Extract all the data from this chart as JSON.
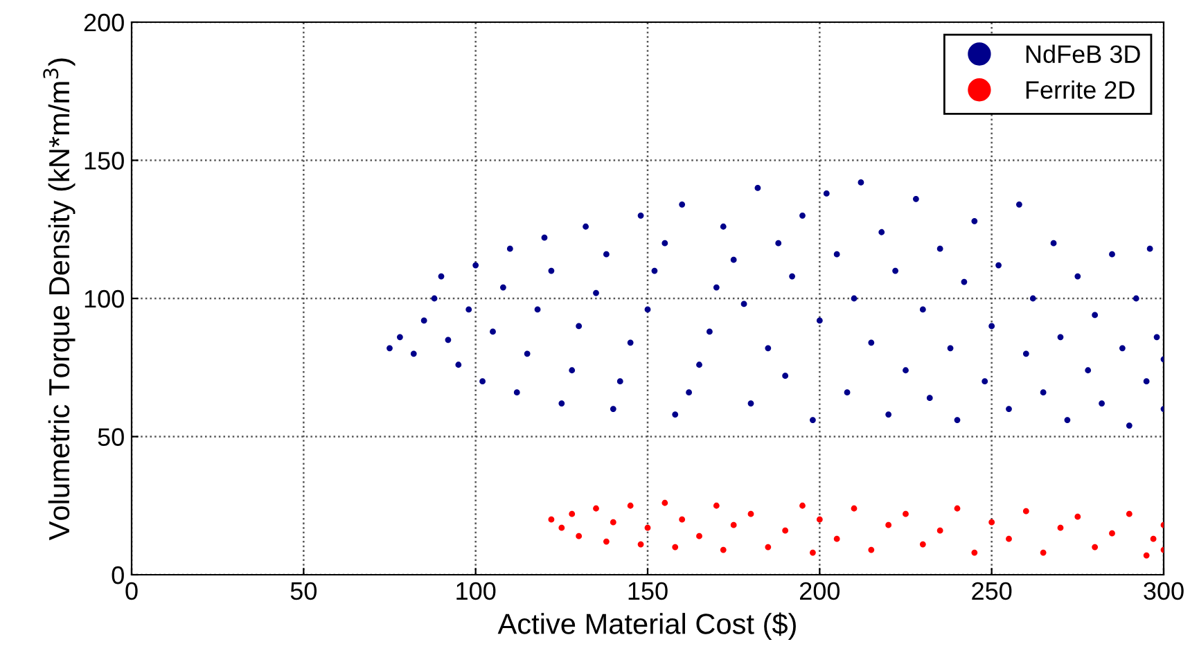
{
  "chart_data": {
    "type": "scatter",
    "xlabel": "Active Material Cost ($)",
    "ylabel": "Volumetric Torque Density (kN*m/m$^{3}$)",
    "xlim": [
      0,
      300
    ],
    "ylim": [
      0,
      200
    ],
    "xticks": [
      0,
      50,
      100,
      150,
      200,
      250,
      300
    ],
    "yticks": [
      0,
      50,
      100,
      150,
      200
    ],
    "grid": true,
    "legend": "top right",
    "marker": "circle",
    "series": [
      {
        "name": "NdFeB 3D",
        "color": "#00008b",
        "x": [
          75,
          78,
          82,
          85,
          88,
          90,
          92,
          95,
          98,
          100,
          102,
          105,
          108,
          110,
          112,
          115,
          118,
          120,
          122,
          125,
          128,
          130,
          132,
          135,
          138,
          140,
          142,
          145,
          148,
          150,
          152,
          155,
          158,
          160,
          162,
          165,
          168,
          170,
          172,
          175,
          178,
          180,
          182,
          185,
          188,
          190,
          192,
          195,
          198,
          200,
          202,
          205,
          208,
          210,
          212,
          215,
          218,
          220,
          222,
          225,
          228,
          230,
          232,
          235,
          238,
          240,
          242,
          245,
          248,
          250,
          252,
          255,
          258,
          260,
          262,
          265,
          268,
          270,
          272,
          275,
          278,
          280,
          282,
          285,
          288,
          290,
          292,
          295,
          296,
          298,
          300,
          300
        ],
        "values": [
          82,
          86,
          80,
          92,
          100,
          108,
          85,
          76,
          96,
          112,
          70,
          88,
          104,
          118,
          66,
          80,
          96,
          122,
          110,
          62,
          74,
          90,
          126,
          102,
          116,
          60,
          70,
          84,
          130,
          96,
          110,
          120,
          58,
          134,
          66,
          76,
          88,
          104,
          126,
          114,
          98,
          62,
          140,
          82,
          120,
          72,
          108,
          130,
          56,
          92,
          138,
          116,
          66,
          100,
          142,
          84,
          124,
          58,
          110,
          74,
          136,
          96,
          64,
          118,
          82,
          56,
          106,
          128,
          70,
          90,
          112,
          60,
          134,
          80,
          100,
          66,
          120,
          86,
          56,
          108,
          74,
          94,
          62,
          116,
          82,
          54,
          100,
          70,
          118,
          86,
          60,
          78
        ]
      },
      {
        "name": "Ferrite 2D",
        "color": "#ff0000",
        "x": [
          122,
          125,
          128,
          130,
          135,
          138,
          140,
          145,
          148,
          150,
          155,
          158,
          160,
          165,
          170,
          172,
          175,
          180,
          185,
          190,
          195,
          198,
          200,
          205,
          210,
          215,
          220,
          225,
          230,
          235,
          240,
          245,
          250,
          255,
          260,
          265,
          270,
          275,
          280,
          285,
          290,
          295,
          300,
          300,
          297
        ],
        "values": [
          20,
          17,
          22,
          14,
          24,
          12,
          19,
          25,
          11,
          17,
          26,
          10,
          20,
          14,
          25,
          9,
          18,
          22,
          10,
          16,
          25,
          8,
          20,
          13,
          24,
          9,
          18,
          22,
          11,
          16,
          24,
          8,
          19,
          13,
          23,
          8,
          17,
          21,
          10,
          15,
          22,
          7,
          18,
          9,
          13
        ]
      }
    ]
  }
}
